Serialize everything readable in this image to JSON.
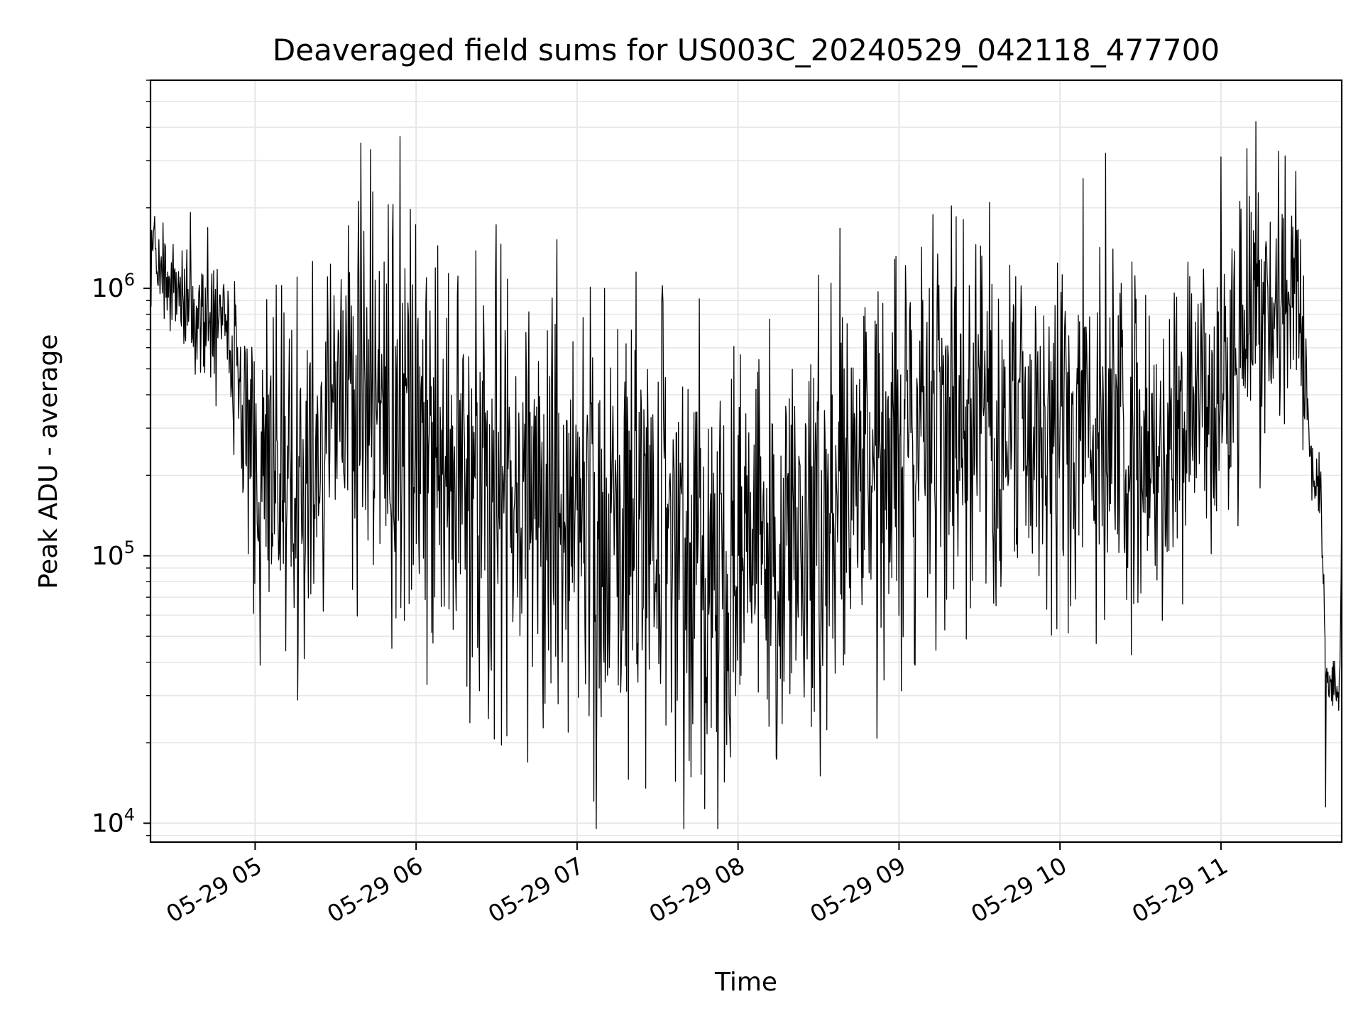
{
  "chart_data": {
    "type": "line",
    "title": "Deaveraged field sums for US003C_20240529_042118_477700",
    "xlabel": "Time",
    "ylabel": "Peak ADU - average",
    "yscale": "log",
    "ylim": [
      8500,
      6000000
    ],
    "xlim": [
      "05-29 04:21",
      "05-29 11:45"
    ],
    "grid": true,
    "legend": "none",
    "colors": {
      "line": "#000000",
      "grid": "#e6e6e6",
      "axes": "#000000",
      "background": "#ffffff"
    },
    "x_ticks": [
      {
        "label": "05-29 05",
        "value": "05-29 05:00"
      },
      {
        "label": "05-29 06",
        "value": "05-29 06:00"
      },
      {
        "label": "05-29 07",
        "value": "05-29 07:00"
      },
      {
        "label": "05-29 08",
        "value": "05-29 08:00"
      },
      {
        "label": "05-29 09",
        "value": "05-29 09:00"
      },
      {
        "label": "05-29 10",
        "value": "05-29 10:00"
      },
      {
        "label": "05-29 11",
        "value": "05-29 11:00"
      }
    ],
    "y_ticks": [
      {
        "base": "10",
        "exp": "4",
        "value": 10000
      },
      {
        "base": "10",
        "exp": "5",
        "value": 100000
      },
      {
        "base": "10",
        "exp": "6",
        "value": 1000000
      }
    ],
    "series": [
      {
        "values_by_time": [
          [
            "05-29 04:21",
            1300000
          ],
          [
            "05-29 04:25",
            1150000
          ],
          [
            "05-29 04:30",
            1100000
          ],
          [
            "05-29 04:35",
            950000
          ],
          [
            "05-29 04:40",
            800000
          ],
          [
            "05-29 04:45",
            700000
          ],
          [
            "05-29 04:50",
            650000
          ],
          [
            "05-29 04:55",
            300000
          ],
          [
            "05-29 05:00",
            280000
          ],
          [
            "05-29 05:05",
            230000
          ],
          [
            "05-29 05:10",
            200000
          ],
          [
            "05-29 05:15",
            150000
          ],
          [
            "05-29 05:20",
            170000
          ],
          [
            "05-29 05:25",
            250000
          ],
          [
            "05-29 05:30",
            350000
          ],
          [
            "05-29 05:35",
            380000
          ],
          [
            "05-29 05:40",
            420000
          ],
          [
            "05-29 05:45",
            400000
          ],
          [
            "05-29 05:50",
            350000
          ],
          [
            "05-29 05:55",
            400000
          ],
          [
            "05-29 06:00",
            250000
          ],
          [
            "05-29 06:10",
            220000
          ],
          [
            "05-29 06:20",
            200000
          ],
          [
            "05-29 06:30",
            180000
          ],
          [
            "05-29 06:40",
            160000
          ],
          [
            "05-29 06:50",
            140000
          ],
          [
            "05-29 07:00",
            130000
          ],
          [
            "05-29 07:10",
            120000
          ],
          [
            "05-29 07:20",
            115000
          ],
          [
            "05-29 07:30",
            120000
          ],
          [
            "05-29 07:40",
            110000
          ],
          [
            "05-29 07:50",
            95000
          ],
          [
            "05-29 08:00",
            90000
          ],
          [
            "05-29 08:10",
            95000
          ],
          [
            "05-29 08:20",
            110000
          ],
          [
            "05-29 08:30",
            130000
          ],
          [
            "05-29 08:40",
            170000
          ],
          [
            "05-29 08:50",
            220000
          ],
          [
            "05-29 09:00",
            280000
          ],
          [
            "05-29 09:10",
            320000
          ],
          [
            "05-29 09:20",
            330000
          ],
          [
            "05-29 09:30",
            320000
          ],
          [
            "05-29 09:40",
            300000
          ],
          [
            "05-29 09:50",
            280000
          ],
          [
            "05-29 10:00",
            300000
          ],
          [
            "05-29 10:10",
            300000
          ],
          [
            "05-29 10:20",
            280000
          ],
          [
            "05-29 10:30",
            250000
          ],
          [
            "05-29 10:40",
            220000
          ],
          [
            "05-29 10:50",
            280000
          ],
          [
            "05-29 11:00",
            420000
          ],
          [
            "05-29 11:05",
            550000
          ],
          [
            "05-29 11:10",
            650000
          ],
          [
            "05-29 11:15",
            700000
          ],
          [
            "05-29 11:20",
            800000
          ],
          [
            "05-29 11:25",
            850000
          ],
          [
            "05-29 11:30",
            900000
          ],
          [
            "05-29 11:33",
            250000
          ],
          [
            "05-29 11:35",
            170000
          ],
          [
            "05-29 11:37",
            180000
          ],
          [
            "05-29 11:38",
            100000
          ],
          [
            "05-29 11:39",
            40000
          ],
          [
            "05-29 11:40",
            30000
          ],
          [
            "05-29 11:42",
            35000
          ],
          [
            "05-29 11:44",
            28000
          ],
          [
            "05-29 11:45",
            140000
          ]
        ],
        "spread_by_time": [
          [
            "05-29 04:21",
            0.35
          ],
          [
            "05-29 04:50",
            0.5
          ],
          [
            "05-29 05:00",
            1.2
          ],
          [
            "05-29 06:00",
            1.4
          ],
          [
            "05-29 07:00",
            1.55
          ],
          [
            "05-29 08:00",
            1.4
          ],
          [
            "05-29 09:00",
            1.3
          ],
          [
            "05-29 10:00",
            1.3
          ],
          [
            "05-29 11:00",
            1.0
          ],
          [
            "05-29 11:30",
            0.8
          ],
          [
            "05-29 11:33",
            0.15
          ],
          [
            "05-29 11:45",
            0.3
          ]
        ],
        "peaks": [
          [
            "05-29 05:43",
            3300000
          ],
          [
            "05-29 05:54",
            3700000
          ],
          [
            "05-29 07:22",
            1150000
          ],
          [
            "05-29 10:17",
            3200000
          ],
          [
            "05-29 11:00",
            3100000
          ],
          [
            "05-29 11:13",
            4200000
          ]
        ],
        "dips": [
          [
            "05-29 07:52",
            22000
          ],
          [
            "05-29 07:09",
            25000
          ],
          [
            "05-29 11:39",
            11500
          ],
          [
            "05-29 05:16",
            45000
          ],
          [
            "05-29 09:06",
            39000
          ]
        ]
      }
    ]
  }
}
